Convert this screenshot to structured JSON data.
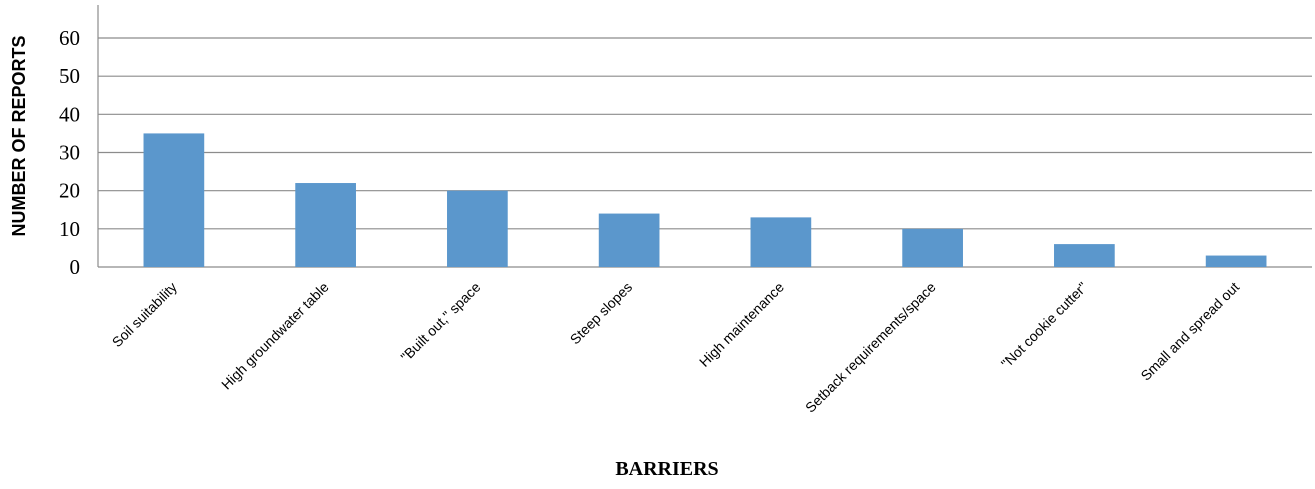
{
  "chart_data": {
    "type": "bar",
    "title": "",
    "xlabel": "BARRIERS",
    "ylabel": "NUMBER OF REPORTS",
    "categories": [
      "Soil suitability",
      "High groundwater table",
      "\"Built out,\" space",
      "Steep slopes",
      "High maintenance",
      "Setback requirements/space",
      "\"Not cookie cutter\"",
      "Small and spread out"
    ],
    "values": [
      35,
      22,
      20,
      14,
      13,
      10,
      6,
      3
    ],
    "ylim": [
      0,
      60
    ],
    "yticks": [
      "0",
      "10",
      "20",
      "30",
      "40",
      "50",
      "60"
    ],
    "grid": true,
    "legend": "none",
    "bar_color": "#5B97CC",
    "grid_color": "#8C8C8C"
  }
}
